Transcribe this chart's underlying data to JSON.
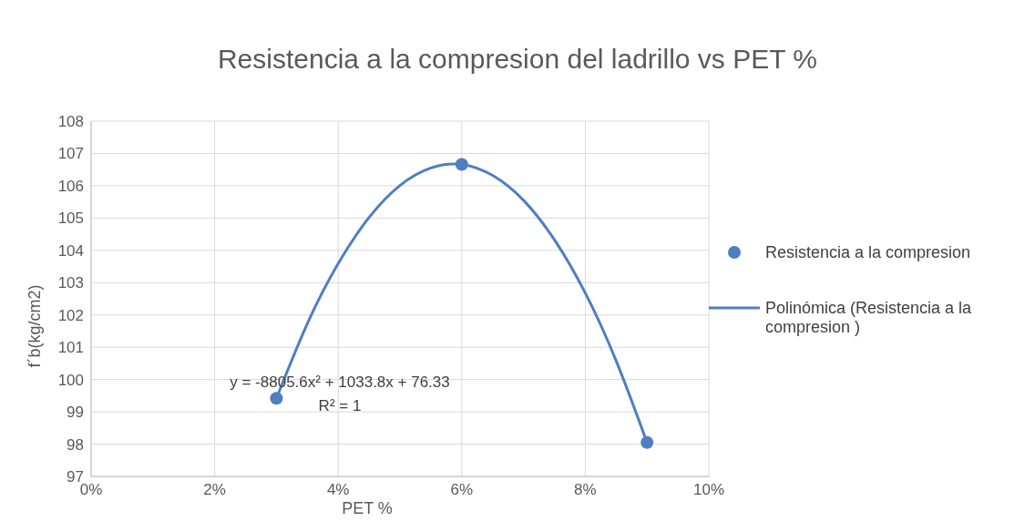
{
  "chart_data": {
    "type": "scatter",
    "title": "Resistencia a la compresion del ladrillo vs PET %",
    "xlabel": "PET %",
    "ylabel": "f´b(kg/cm2)",
    "series": [
      {
        "name": "Resistencia a la compresion",
        "color": "#4f7ec2",
        "marker": "circle",
        "x": [
          3,
          6,
          9
        ],
        "values": [
          99.42,
          106.66,
          98.05
        ]
      },
      {
        "name": "Polinómica (Resistencia a la compresion )",
        "type": "line",
        "color": "#4f7ec2",
        "marker": "none",
        "x": [
          3,
          3.5,
          4,
          4.5,
          5,
          5.5,
          6,
          6.5,
          7,
          7.5,
          8,
          8.5,
          9
        ],
        "values": [
          99.42,
          101.73,
          103.59,
          105.02,
          106.01,
          106.55,
          106.66,
          106.32,
          105.55,
          104.33,
          102.68,
          100.58,
          98.05
        ]
      }
    ],
    "annotations": [
      "y = -8805.6x² + 1033.8x + 76.33",
      "R² = 1"
    ],
    "xlim": [
      0,
      10
    ],
    "xticks": [
      {
        "value": 0,
        "label": "0%"
      },
      {
        "value": 2,
        "label": "2%"
      },
      {
        "value": 4,
        "label": "4%"
      },
      {
        "value": 6,
        "label": "6%"
      },
      {
        "value": 8,
        "label": "8%"
      },
      {
        "value": 10,
        "label": "10%"
      }
    ],
    "ylim": [
      97,
      108
    ],
    "yticks": [
      97,
      98,
      99,
      100,
      101,
      102,
      103,
      104,
      105,
      106,
      107,
      108
    ],
    "grid": true,
    "legend": "right"
  }
}
